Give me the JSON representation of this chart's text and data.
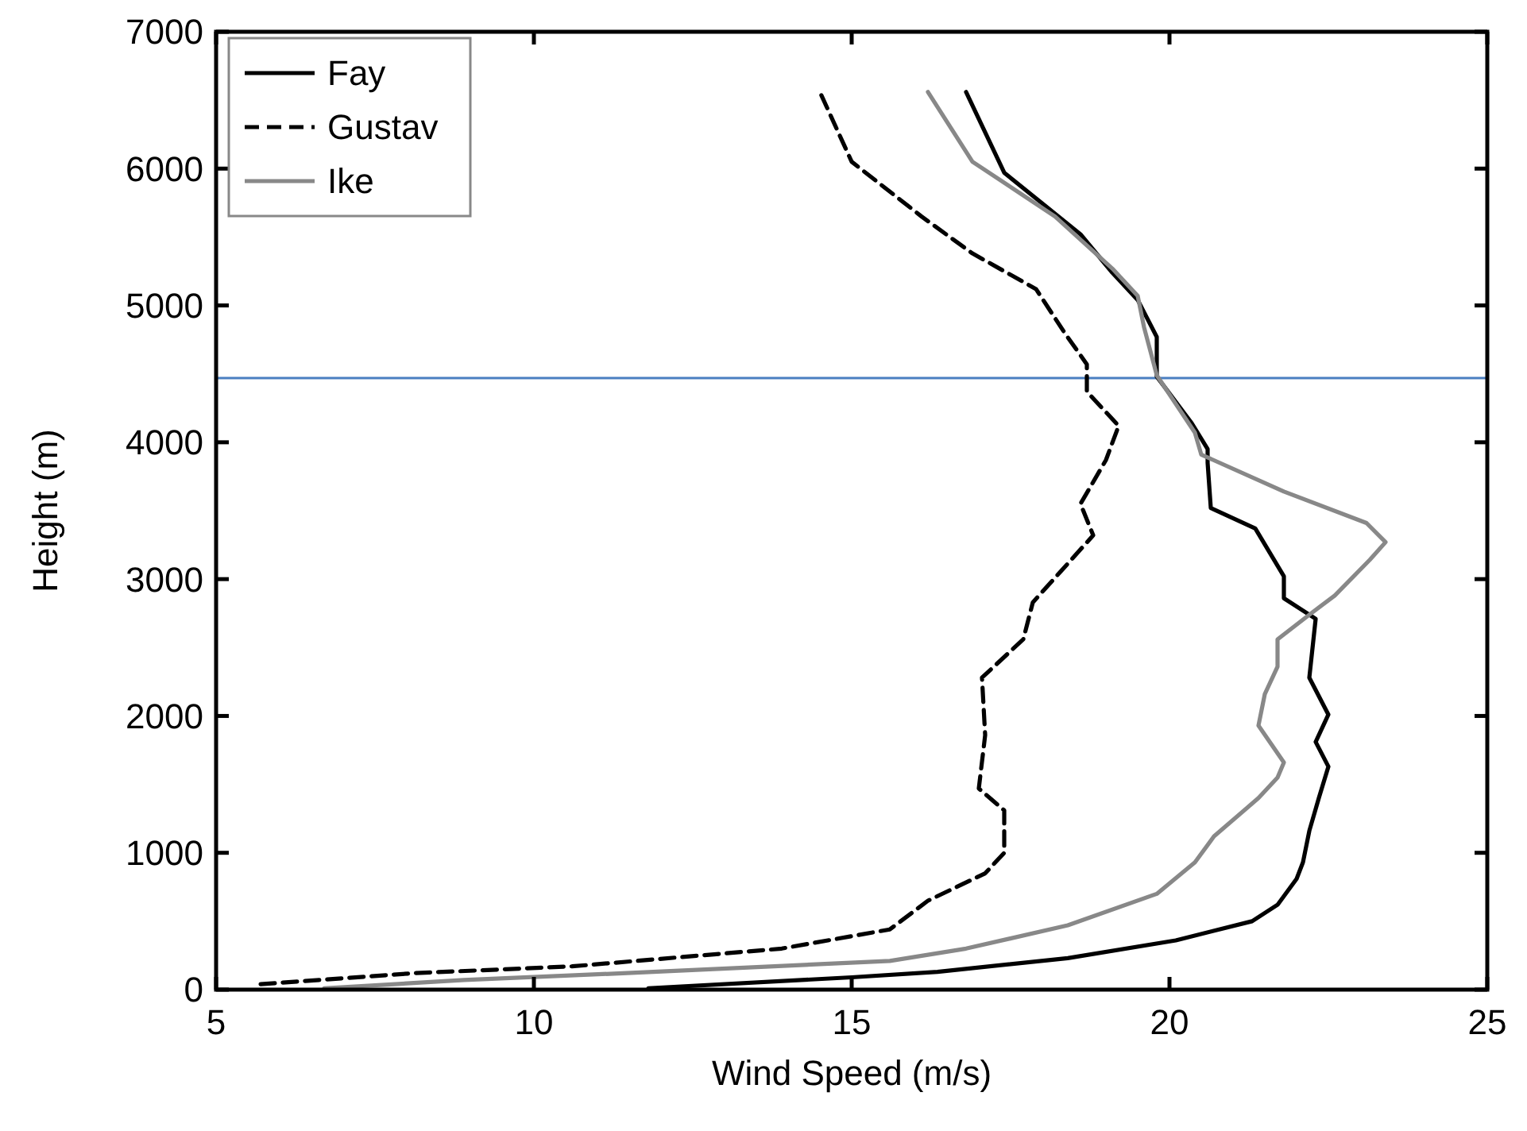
{
  "chart_data": {
    "type": "line",
    "xlabel": "Wind Speed (m/s)",
    "ylabel": "Height (m)",
    "xlim": [
      5,
      25
    ],
    "xticks": [
      5,
      10,
      15,
      20,
      25
    ],
    "ylim": [
      0,
      7000
    ],
    "yticks": [
      0,
      1000,
      2000,
      3000,
      4000,
      5000,
      6000,
      7000
    ],
    "grid": false,
    "legend": "top left",
    "ref_lines": [
      {
        "axis": "y",
        "value": 4470,
        "color": "#4a7fc1"
      }
    ],
    "series": [
      {
        "name": "Fay",
        "color": "#000000",
        "line_style": "solid",
        "x": [
          11.8,
          15.0,
          16.35,
          18.4,
          20.1,
          21.3,
          21.7,
          22.0,
          22.1,
          22.2,
          22.35,
          22.5,
          22.3,
          22.5,
          22.2,
          22.3,
          21.8,
          21.8,
          21.35,
          20.65,
          20.6,
          20.6,
          20.35,
          19.8,
          19.8,
          19.5,
          19.1,
          18.6,
          17.4,
          16.8
        ],
        "values": [
          10,
          90,
          130,
          230,
          360,
          500,
          620,
          810,
          930,
          1160,
          1400,
          1630,
          1810,
          2010,
          2280,
          2710,
          2860,
          3020,
          3370,
          3520,
          3850,
          3950,
          4140,
          4480,
          4770,
          5040,
          5240,
          5520,
          5970,
          6560
        ]
      },
      {
        "name": "Gustav",
        "color": "#000000",
        "line_style": "dashed",
        "x": [
          5.7,
          8.1,
          10.6,
          13.9,
          15.6,
          16.2,
          17.1,
          17.4,
          17.4,
          17.0,
          17.1,
          17.05,
          17.7,
          17.85,
          18.8,
          18.6,
          19.0,
          19.2,
          18.7,
          18.7,
          18.35,
          17.9,
          16.9,
          16.1,
          15.0,
          14.5
        ],
        "values": [
          40,
          120,
          170,
          300,
          440,
          650,
          850,
          1000,
          1310,
          1470,
          1860,
          2280,
          2560,
          2830,
          3320,
          3550,
          3870,
          4120,
          4370,
          4570,
          4800,
          5120,
          5380,
          5650,
          6050,
          6560
        ]
      },
      {
        "name": "Ike",
        "color": "#888888",
        "line_style": "solid",
        "x": [
          6.7,
          8.9,
          11.4,
          15.6,
          16.8,
          18.4,
          19.8,
          20.4,
          20.7,
          21.4,
          21.7,
          21.8,
          21.4,
          21.5,
          21.7,
          21.7,
          22.2,
          22.6,
          23.15,
          23.4,
          23.1,
          21.8,
          20.5,
          20.4,
          19.8,
          19.6,
          19.5,
          19.1,
          18.2,
          16.9,
          16.2
        ],
        "values": [
          10,
          70,
          120,
          210,
          300,
          470,
          700,
          930,
          1120,
          1400,
          1550,
          1660,
          1930,
          2160,
          2360,
          2560,
          2740,
          2880,
          3140,
          3270,
          3410,
          3640,
          3910,
          4070,
          4490,
          4840,
          5070,
          5270,
          5650,
          6050,
          6560
        ]
      }
    ]
  }
}
